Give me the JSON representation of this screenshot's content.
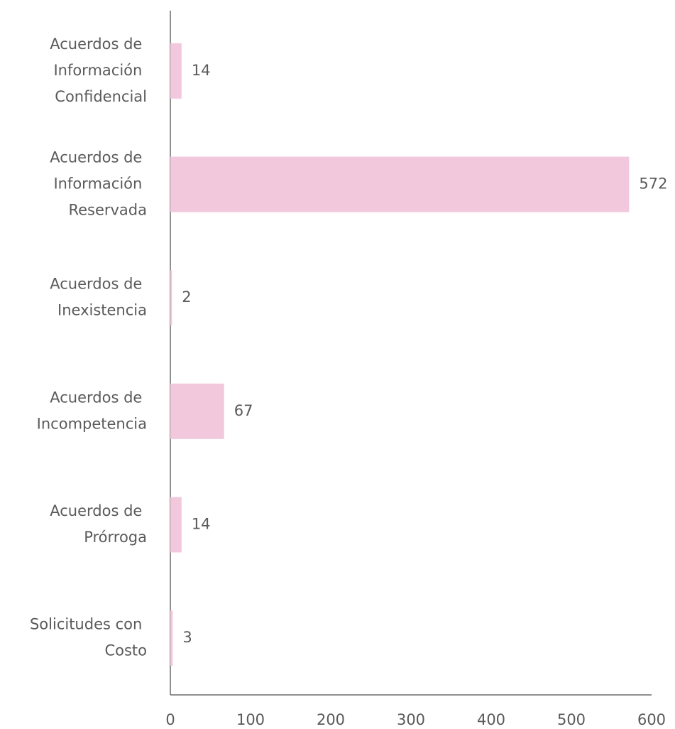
{
  "chart_data": {
    "type": "hbar",
    "categories": [
      "Acuerdos de Información Confidencial",
      "Acuerdos de Información Reservada",
      "Acuerdos de Inexistencia",
      "Acuerdos de Incompetencia",
      "Acuerdos de Prórroga",
      "Solicitudes con Costo"
    ],
    "values": [
      14,
      572,
      2,
      67,
      14,
      3
    ],
    "color": "#f2c8dc",
    "xlim": [
      0,
      600
    ],
    "xticks": [
      0,
      100,
      200,
      300,
      400,
      500,
      600
    ],
    "grid": false
  }
}
